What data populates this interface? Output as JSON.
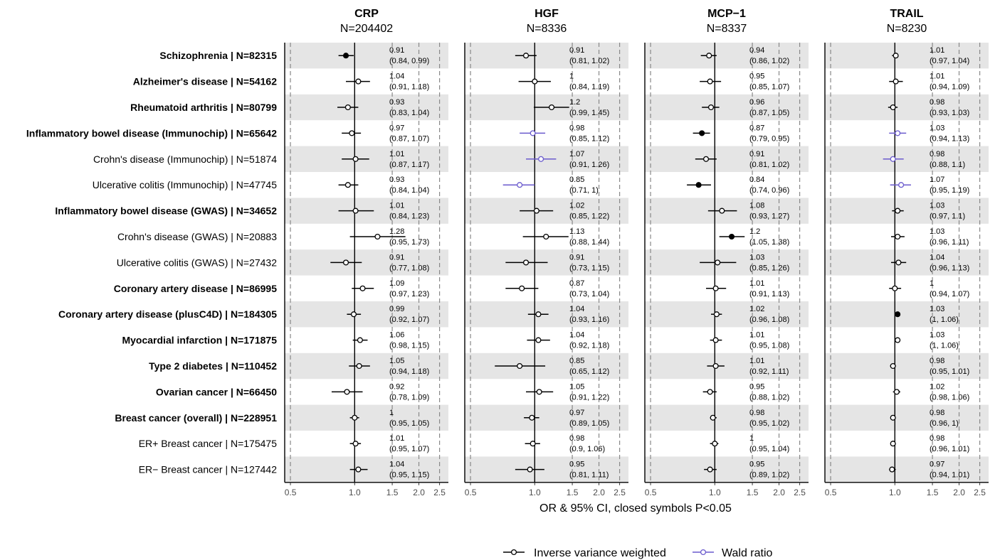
{
  "chart_data": {
    "type": "forest",
    "x_axis_label": "OR & 95% CI, closed symbols P<0.05",
    "x_scale": "log",
    "x_ticks": [
      "0.5",
      "1.0",
      "1.5",
      "2.0",
      "2.5"
    ],
    "x_tick_values": [
      0.5,
      1.0,
      1.5,
      2.0,
      2.5
    ],
    "xlim": [
      0.47,
      2.75
    ],
    "grid": false,
    "legend_position": "bottom",
    "legend": [
      {
        "label": "Inverse variance weighted",
        "color": "#000000"
      },
      {
        "label": "Wald ratio",
        "color": "#6a5acd"
      }
    ],
    "outcomes": [
      {
        "label": "Schizophrenia | N=82315",
        "bold": true
      },
      {
        "label": "Alzheimer's disease | N=54162",
        "bold": true
      },
      {
        "label": "Rheumatoid arthritis | N=80799",
        "bold": true
      },
      {
        "label": "Inflammatory bowel disease (Immunochip) | N=65642",
        "bold": true
      },
      {
        "label": "Crohn's disease (Immunochip) | N=51874",
        "bold": false
      },
      {
        "label": "Ulcerative colitis (Immunochip) | N=47745",
        "bold": false
      },
      {
        "label": "Inflammatory bowel disease (GWAS) | N=34652",
        "bold": true
      },
      {
        "label": "Crohn's disease (GWAS) | N=20883",
        "bold": false
      },
      {
        "label": "Ulcerative colitis (GWAS) | N=27432",
        "bold": false
      },
      {
        "label": "Coronary artery disease | N=86995",
        "bold": true
      },
      {
        "label": "Coronary artery disease (plusC4D) | N=184305",
        "bold": true
      },
      {
        "label": "Myocardial infarction | N=171875",
        "bold": true
      },
      {
        "label": "Type 2 diabetes | N=110452",
        "bold": true
      },
      {
        "label": "Ovarian cancer | N=66450",
        "bold": true
      },
      {
        "label": "Breast cancer (overall) | N=228951",
        "bold": true
      },
      {
        "label": "ER+ Breast cancer | N=175475",
        "bold": false
      },
      {
        "label": "ER− Breast cancer | N=127442",
        "bold": false
      }
    ],
    "panels": [
      {
        "title": "CRP",
        "subtitle": "N=204402",
        "rows": [
          {
            "or": 0.91,
            "lo": 0.84,
            "hi": 0.99,
            "or_text": "0.91",
            "ci_text": "(0.84, 0.99)",
            "sig": true,
            "method": "ivw"
          },
          {
            "or": 1.04,
            "lo": 0.91,
            "hi": 1.18,
            "or_text": "1.04",
            "ci_text": "(0.91, 1.18)",
            "sig": false,
            "method": "ivw"
          },
          {
            "or": 0.93,
            "lo": 0.83,
            "hi": 1.04,
            "or_text": "0.93",
            "ci_text": "(0.83, 1.04)",
            "sig": false,
            "method": "ivw"
          },
          {
            "or": 0.97,
            "lo": 0.87,
            "hi": 1.07,
            "or_text": "0.97",
            "ci_text": "(0.87, 1.07)",
            "sig": false,
            "method": "ivw"
          },
          {
            "or": 1.01,
            "lo": 0.87,
            "hi": 1.17,
            "or_text": "1.01",
            "ci_text": "(0.87, 1.17)",
            "sig": false,
            "method": "ivw"
          },
          {
            "or": 0.93,
            "lo": 0.84,
            "hi": 1.04,
            "or_text": "0.93",
            "ci_text": "(0.84, 1.04)",
            "sig": false,
            "method": "ivw"
          },
          {
            "or": 1.01,
            "lo": 0.84,
            "hi": 1.23,
            "or_text": "1.01",
            "ci_text": "(0.84, 1.23)",
            "sig": false,
            "method": "ivw"
          },
          {
            "or": 1.28,
            "lo": 0.95,
            "hi": 1.73,
            "or_text": "1.28",
            "ci_text": "(0.95, 1.73)",
            "sig": false,
            "method": "ivw"
          },
          {
            "or": 0.91,
            "lo": 0.77,
            "hi": 1.08,
            "or_text": "0.91",
            "ci_text": "(0.77, 1.08)",
            "sig": false,
            "method": "ivw"
          },
          {
            "or": 1.09,
            "lo": 0.97,
            "hi": 1.23,
            "or_text": "1.09",
            "ci_text": "(0.97, 1.23)",
            "sig": false,
            "method": "ivw"
          },
          {
            "or": 0.99,
            "lo": 0.92,
            "hi": 1.07,
            "or_text": "0.99",
            "ci_text": "(0.92, 1.07)",
            "sig": false,
            "method": "ivw"
          },
          {
            "or": 1.06,
            "lo": 0.98,
            "hi": 1.15,
            "or_text": "1.06",
            "ci_text": "(0.98, 1.15)",
            "sig": false,
            "method": "ivw"
          },
          {
            "or": 1.05,
            "lo": 0.94,
            "hi": 1.18,
            "or_text": "1.05",
            "ci_text": "(0.94, 1.18)",
            "sig": false,
            "method": "ivw"
          },
          {
            "or": 0.92,
            "lo": 0.78,
            "hi": 1.09,
            "or_text": "0.92",
            "ci_text": "(0.78, 1.09)",
            "sig": false,
            "method": "ivw"
          },
          {
            "or": 1.0,
            "lo": 0.95,
            "hi": 1.05,
            "or_text": "1",
            "ci_text": "(0.95, 1.05)",
            "sig": false,
            "method": "ivw"
          },
          {
            "or": 1.01,
            "lo": 0.95,
            "hi": 1.07,
            "or_text": "1.01",
            "ci_text": "(0.95, 1.07)",
            "sig": false,
            "method": "ivw"
          },
          {
            "or": 1.04,
            "lo": 0.95,
            "hi": 1.15,
            "or_text": "1.04",
            "ci_text": "(0.95, 1.15)",
            "sig": false,
            "method": "ivw"
          }
        ]
      },
      {
        "title": "HGF",
        "subtitle": "N=8336",
        "rows": [
          {
            "or": 0.91,
            "lo": 0.81,
            "hi": 1.02,
            "or_text": "0.91",
            "ci_text": "(0.81, 1.02)",
            "sig": false,
            "method": "ivw"
          },
          {
            "or": 1.0,
            "lo": 0.84,
            "hi": 1.19,
            "or_text": "1",
            "ci_text": "(0.84, 1.19)",
            "sig": false,
            "method": "ivw"
          },
          {
            "or": 1.2,
            "lo": 0.99,
            "hi": 1.45,
            "or_text": "1.2",
            "ci_text": "(0.99, 1.45)",
            "sig": false,
            "method": "ivw"
          },
          {
            "or": 0.98,
            "lo": 0.85,
            "hi": 1.12,
            "or_text": "0.98",
            "ci_text": "(0.85, 1.12)",
            "sig": false,
            "method": "wald"
          },
          {
            "or": 1.07,
            "lo": 0.91,
            "hi": 1.26,
            "or_text": "1.07",
            "ci_text": "(0.91, 1.26)",
            "sig": false,
            "method": "wald"
          },
          {
            "or": 0.85,
            "lo": 0.71,
            "hi": 1.0,
            "or_text": "0.85",
            "ci_text": "(0.71, 1)",
            "sig": false,
            "method": "wald"
          },
          {
            "or": 1.02,
            "lo": 0.85,
            "hi": 1.22,
            "or_text": "1.02",
            "ci_text": "(0.85, 1.22)",
            "sig": false,
            "method": "ivw"
          },
          {
            "or": 1.13,
            "lo": 0.88,
            "hi": 1.44,
            "or_text": "1.13",
            "ci_text": "(0.88, 1.44)",
            "sig": false,
            "method": "ivw"
          },
          {
            "or": 0.91,
            "lo": 0.73,
            "hi": 1.15,
            "or_text": "0.91",
            "ci_text": "(0.73, 1.15)",
            "sig": false,
            "method": "ivw"
          },
          {
            "or": 0.87,
            "lo": 0.73,
            "hi": 1.04,
            "or_text": "0.87",
            "ci_text": "(0.73, 1.04)",
            "sig": false,
            "method": "ivw"
          },
          {
            "or": 1.04,
            "lo": 0.93,
            "hi": 1.16,
            "or_text": "1.04",
            "ci_text": "(0.93, 1.16)",
            "sig": false,
            "method": "ivw"
          },
          {
            "or": 1.04,
            "lo": 0.92,
            "hi": 1.18,
            "or_text": "1.04",
            "ci_text": "(0.92, 1.18)",
            "sig": false,
            "method": "ivw"
          },
          {
            "or": 0.85,
            "lo": 0.65,
            "hi": 1.12,
            "or_text": "0.85",
            "ci_text": "(0.65, 1.12)",
            "sig": false,
            "method": "ivw"
          },
          {
            "or": 1.05,
            "lo": 0.91,
            "hi": 1.22,
            "or_text": "1.05",
            "ci_text": "(0.91, 1.22)",
            "sig": false,
            "method": "ivw"
          },
          {
            "or": 0.97,
            "lo": 0.89,
            "hi": 1.05,
            "or_text": "0.97",
            "ci_text": "(0.89, 1.05)",
            "sig": false,
            "method": "ivw"
          },
          {
            "or": 0.98,
            "lo": 0.9,
            "hi": 1.06,
            "or_text": "0.98",
            "ci_text": "(0.9, 1.06)",
            "sig": false,
            "method": "ivw"
          },
          {
            "or": 0.95,
            "lo": 0.81,
            "hi": 1.11,
            "or_text": "0.95",
            "ci_text": "(0.81, 1.11)",
            "sig": false,
            "method": "ivw"
          }
        ]
      },
      {
        "title": "MCP−1",
        "subtitle": "N=8337",
        "rows": [
          {
            "or": 0.94,
            "lo": 0.86,
            "hi": 1.02,
            "or_text": "0.94",
            "ci_text": "(0.86, 1.02)",
            "sig": false,
            "method": "ivw"
          },
          {
            "or": 0.95,
            "lo": 0.85,
            "hi": 1.07,
            "or_text": "0.95",
            "ci_text": "(0.85, 1.07)",
            "sig": false,
            "method": "ivw"
          },
          {
            "or": 0.96,
            "lo": 0.87,
            "hi": 1.05,
            "or_text": "0.96",
            "ci_text": "(0.87, 1.05)",
            "sig": false,
            "method": "ivw"
          },
          {
            "or": 0.87,
            "lo": 0.79,
            "hi": 0.95,
            "or_text": "0.87",
            "ci_text": "(0.79, 0.95)",
            "sig": true,
            "method": "ivw"
          },
          {
            "or": 0.91,
            "lo": 0.81,
            "hi": 1.02,
            "or_text": "0.91",
            "ci_text": "(0.81, 1.02)",
            "sig": false,
            "method": "ivw"
          },
          {
            "or": 0.84,
            "lo": 0.74,
            "hi": 0.96,
            "or_text": "0.84",
            "ci_text": "(0.74, 0.96)",
            "sig": true,
            "method": "ivw"
          },
          {
            "or": 1.08,
            "lo": 0.93,
            "hi": 1.27,
            "or_text": "1.08",
            "ci_text": "(0.93, 1.27)",
            "sig": false,
            "method": "ivw"
          },
          {
            "or": 1.2,
            "lo": 1.05,
            "hi": 1.38,
            "or_text": "1.2",
            "ci_text": "(1.05, 1.38)",
            "sig": true,
            "method": "ivw"
          },
          {
            "or": 1.03,
            "lo": 0.85,
            "hi": 1.26,
            "or_text": "1.03",
            "ci_text": "(0.85, 1.26)",
            "sig": false,
            "method": "ivw"
          },
          {
            "or": 1.01,
            "lo": 0.91,
            "hi": 1.13,
            "or_text": "1.01",
            "ci_text": "(0.91, 1.13)",
            "sig": false,
            "method": "ivw"
          },
          {
            "or": 1.02,
            "lo": 0.96,
            "hi": 1.08,
            "or_text": "1.02",
            "ci_text": "(0.96, 1.08)",
            "sig": false,
            "method": "ivw"
          },
          {
            "or": 1.01,
            "lo": 0.95,
            "hi": 1.08,
            "or_text": "1.01",
            "ci_text": "(0.95, 1.08)",
            "sig": false,
            "method": "ivw"
          },
          {
            "or": 1.01,
            "lo": 0.92,
            "hi": 1.11,
            "or_text": "1.01",
            "ci_text": "(0.92, 1.11)",
            "sig": false,
            "method": "ivw"
          },
          {
            "or": 0.95,
            "lo": 0.88,
            "hi": 1.02,
            "or_text": "0.95",
            "ci_text": "(0.88, 1.02)",
            "sig": false,
            "method": "ivw"
          },
          {
            "or": 0.98,
            "lo": 0.95,
            "hi": 1.02,
            "or_text": "0.98",
            "ci_text": "(0.95, 1.02)",
            "sig": false,
            "method": "ivw"
          },
          {
            "or": 1.0,
            "lo": 0.95,
            "hi": 1.04,
            "or_text": "1",
            "ci_text": "(0.95, 1.04)",
            "sig": false,
            "method": "ivw"
          },
          {
            "or": 0.95,
            "lo": 0.89,
            "hi": 1.02,
            "or_text": "0.95",
            "ci_text": "(0.89, 1.02)",
            "sig": false,
            "method": "ivw"
          }
        ]
      },
      {
        "title": "TRAIL",
        "subtitle": "N=8230",
        "rows": [
          {
            "or": 1.01,
            "lo": 0.97,
            "hi": 1.04,
            "or_text": "1.01",
            "ci_text": "(0.97, 1.04)",
            "sig": false,
            "method": "ivw"
          },
          {
            "or": 1.01,
            "lo": 0.94,
            "hi": 1.09,
            "or_text": "1.01",
            "ci_text": "(0.94, 1.09)",
            "sig": false,
            "method": "ivw"
          },
          {
            "or": 0.98,
            "lo": 0.93,
            "hi": 1.03,
            "or_text": "0.98",
            "ci_text": "(0.93, 1.03)",
            "sig": false,
            "method": "ivw"
          },
          {
            "or": 1.03,
            "lo": 0.94,
            "hi": 1.13,
            "or_text": "1.03",
            "ci_text": "(0.94, 1.13)",
            "sig": false,
            "method": "wald"
          },
          {
            "or": 0.98,
            "lo": 0.88,
            "hi": 1.1,
            "or_text": "0.98",
            "ci_text": "(0.88, 1.1)",
            "sig": false,
            "method": "wald"
          },
          {
            "or": 1.07,
            "lo": 0.95,
            "hi": 1.19,
            "or_text": "1.07",
            "ci_text": "(0.95, 1.19)",
            "sig": false,
            "method": "wald"
          },
          {
            "or": 1.03,
            "lo": 0.97,
            "hi": 1.1,
            "or_text": "1.03",
            "ci_text": "(0.97, 1.1)",
            "sig": false,
            "method": "ivw"
          },
          {
            "or": 1.03,
            "lo": 0.96,
            "hi": 1.11,
            "or_text": "1.03",
            "ci_text": "(0.96, 1.11)",
            "sig": false,
            "method": "ivw"
          },
          {
            "or": 1.04,
            "lo": 0.96,
            "hi": 1.13,
            "or_text": "1.04",
            "ci_text": "(0.96, 1.13)",
            "sig": false,
            "method": "ivw"
          },
          {
            "or": 1.0,
            "lo": 0.94,
            "hi": 1.07,
            "or_text": "1",
            "ci_text": "(0.94, 1.07)",
            "sig": false,
            "method": "ivw"
          },
          {
            "or": 1.03,
            "lo": 1.0,
            "hi": 1.06,
            "or_text": "1.03",
            "ci_text": "(1, 1.06)",
            "sig": true,
            "method": "ivw"
          },
          {
            "or": 1.03,
            "lo": 1.0,
            "hi": 1.06,
            "or_text": "1.03",
            "ci_text": "(1, 1.06)",
            "sig": false,
            "method": "ivw"
          },
          {
            "or": 0.98,
            "lo": 0.95,
            "hi": 1.01,
            "or_text": "0.98",
            "ci_text": "(0.95, 1.01)",
            "sig": false,
            "method": "ivw"
          },
          {
            "or": 1.02,
            "lo": 0.98,
            "hi": 1.06,
            "or_text": "1.02",
            "ci_text": "(0.98, 1.06)",
            "sig": false,
            "method": "ivw"
          },
          {
            "or": 0.98,
            "lo": 0.96,
            "hi": 1.0,
            "or_text": "0.98",
            "ci_text": "(0.96, 1)",
            "sig": false,
            "method": "ivw"
          },
          {
            "or": 0.98,
            "lo": 0.96,
            "hi": 1.01,
            "or_text": "0.98",
            "ci_text": "(0.96, 1.01)",
            "sig": false,
            "method": "ivw"
          },
          {
            "or": 0.97,
            "lo": 0.94,
            "hi": 1.01,
            "or_text": "0.97",
            "ci_text": "(0.94, 1.01)",
            "sig": false,
            "method": "ivw"
          }
        ]
      }
    ]
  }
}
